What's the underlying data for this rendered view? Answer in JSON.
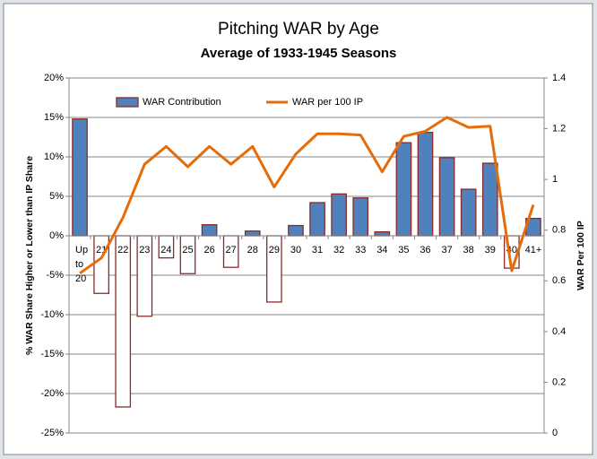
{
  "chart_data": {
    "type": "bar_line",
    "title": "Pitching WAR by Age",
    "subtitle": "Average of 1933-1945 Seasons",
    "y_label": "% WAR Share Higher or Lower than IP Share",
    "y2_label": "WAR Per 100 IP",
    "categories": [
      "Up to 20",
      "21",
      "22",
      "23",
      "24",
      "25",
      "26",
      "27",
      "28",
      "29",
      "30",
      "31",
      "32",
      "33",
      "34",
      "35",
      "36",
      "37",
      "38",
      "39",
      "40",
      "41+"
    ],
    "series": [
      {
        "name": "WAR Contribution",
        "type": "bar",
        "color": "#4f81bd",
        "negative_color": "#ffffff",
        "border_color": "#8b2a2a",
        "values": [
          14.8,
          -7.3,
          -21.7,
          -10.2,
          -2.8,
          -4.8,
          1.4,
          -4.0,
          0.6,
          -8.4,
          1.3,
          4.2,
          5.3,
          4.8,
          0.5,
          11.8,
          13.1,
          9.9,
          5.9,
          9.2,
          -4.1,
          2.2
        ]
      },
      {
        "name": "WAR per 100 IP",
        "type": "line",
        "axis": "y2",
        "color": "#e46c0a",
        "values": [
          0.63,
          0.69,
          0.85,
          1.06,
          1.13,
          1.05,
          1.13,
          1.06,
          1.13,
          0.97,
          1.1,
          1.18,
          1.18,
          1.175,
          1.03,
          1.17,
          1.19,
          1.245,
          1.205,
          1.21,
          0.64,
          0.9
        ]
      }
    ],
    "ylim": [
      -25,
      20
    ],
    "yticks": [
      {
        "value": -25,
        "label": "-25%"
      },
      {
        "value": -20,
        "label": "-20%"
      },
      {
        "value": -15,
        "label": "-15%"
      },
      {
        "value": -10,
        "label": "-10%"
      },
      {
        "value": -5,
        "label": "-5%"
      },
      {
        "value": 0,
        "label": "0%"
      },
      {
        "value": 5,
        "label": "5%"
      },
      {
        "value": 10,
        "label": "10%"
      },
      {
        "value": 15,
        "label": "15%"
      },
      {
        "value": 20,
        "label": "20%"
      }
    ],
    "y2lim": [
      0,
      1.4
    ],
    "y2ticks": [
      0,
      0.2,
      0.4,
      0.6,
      0.8,
      1,
      1.2,
      1.4
    ],
    "grid": true,
    "legend": "top"
  }
}
